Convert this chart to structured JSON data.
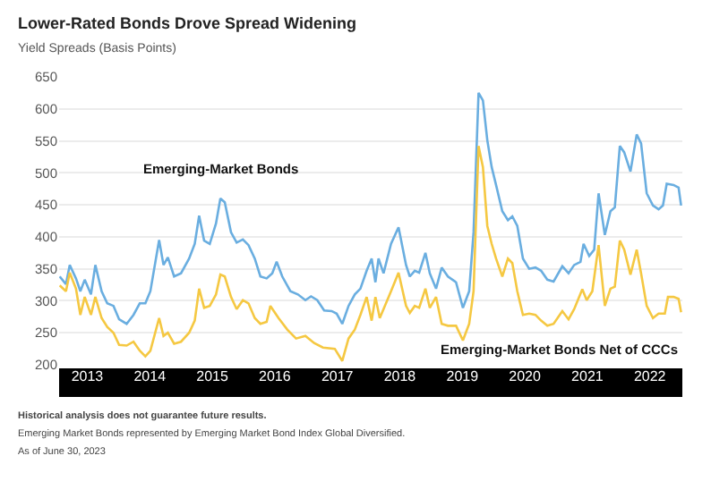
{
  "chart_data": {
    "type": "line",
    "title": "Lower-Rated Bonds Drove Spread Widening",
    "subtitle": "Yield Spreads (Basis Points)",
    "x": [
      2013.06,
      2013.16,
      2013.22,
      2013.32,
      2013.39,
      2013.46,
      2013.56,
      2013.63,
      2013.73,
      2013.82,
      2013.92,
      2014.01,
      2014.13,
      2014.24,
      2014.34,
      2014.43,
      2014.51,
      2014.65,
      2014.72,
      2014.79,
      2014.89,
      2015.0,
      2015.13,
      2015.22,
      2015.29,
      2015.37,
      2015.46,
      2015.56,
      2015.63,
      2015.7,
      2015.8,
      2015.89,
      2015.99,
      2016.08,
      2016.18,
      2016.27,
      2016.37,
      2016.46,
      2016.53,
      2016.62,
      2016.75,
      2016.87,
      2016.99,
      2017.08,
      2017.18,
      2017.29,
      2017.41,
      2017.49,
      2017.58,
      2017.68,
      2017.78,
      2017.87,
      2017.97,
      2018.05,
      2018.11,
      2018.16,
      2018.24,
      2018.36,
      2018.48,
      2018.6,
      2018.66,
      2018.74,
      2018.81,
      2018.91,
      2018.98,
      2019.08,
      2019.17,
      2019.27,
      2019.4,
      2019.51,
      2019.61,
      2019.68,
      2019.76,
      2019.83,
      2019.9,
      2019.97,
      2020.04,
      2020.14,
      2020.23,
      2020.3,
      2020.38,
      2020.47,
      2020.57,
      2020.67,
      2020.76,
      2020.86,
      2020.96,
      2021.1,
      2021.2,
      2021.29,
      2021.39,
      2021.44,
      2021.53,
      2021.61,
      2021.68,
      2021.78,
      2021.87,
      2021.94,
      2022.02,
      2022.09,
      2022.19,
      2022.29,
      2022.36,
      2022.45,
      2022.55,
      2022.64,
      2022.71,
      2022.77,
      2022.88,
      2022.96,
      2023.0
    ],
    "series": [
      {
        "name": "Emerging-Market Bonds",
        "color": "#6aaee0",
        "values": [
          338,
          326,
          356,
          335,
          315,
          333,
          310,
          356,
          315,
          296,
          292,
          271,
          264,
          278,
          296,
          296,
          315,
          395,
          356,
          368,
          338,
          343,
          366,
          389,
          433,
          394,
          389,
          421,
          460,
          454,
          407,
          391,
          396,
          387,
          366,
          338,
          335,
          343,
          361,
          338,
          315,
          310,
          301,
          307,
          301,
          285,
          284,
          280,
          264,
          292,
          310,
          319,
          347,
          366,
          329,
          366,
          343,
          389,
          415,
          356,
          338,
          347,
          344,
          375,
          343,
          319,
          352,
          338,
          329,
          289,
          315,
          407,
          625,
          613,
          551,
          509,
          481,
          440,
          426,
          432,
          417,
          366,
          350,
          352,
          347,
          333,
          330,
          354,
          343,
          356,
          361,
          389,
          370,
          380,
          468,
          403,
          440,
          446,
          542,
          532,
          502,
          560,
          546,
          468,
          449,
          443,
          449,
          483,
          481,
          477,
          449
        ]
      },
      {
        "name": "Emerging-Market Bonds Net of CCCs",
        "color": "#f5c842",
        "x": [
          2013.06,
          2013.16,
          2013.22,
          2013.32,
          2013.39,
          2013.46,
          2013.56,
          2013.63,
          2013.73,
          2013.82,
          2013.92,
          2014.01,
          2014.13,
          2014.24,
          2014.34,
          2014.43,
          2014.51,
          2014.65,
          2014.72,
          2014.79,
          2014.89,
          2015.0,
          2015.13,
          2015.22,
          2015.29,
          2015.37,
          2015.46,
          2015.56,
          2015.63,
          2015.7,
          2015.8,
          2015.89,
          2015.99,
          2016.08,
          2016.18,
          2016.27,
          2016.37,
          2016.43,
          2016.56,
          2016.7,
          2016.84,
          2016.99,
          2017.13,
          2017.27,
          2017.46,
          2017.58,
          2017.68,
          2017.78,
          2017.87,
          2017.97,
          2018.05,
          2018.11,
          2018.18,
          2018.36,
          2018.48,
          2018.6,
          2018.66,
          2018.74,
          2018.81,
          2018.91,
          2018.98,
          2019.08,
          2019.17,
          2019.27,
          2019.4,
          2019.51,
          2019.61,
          2019.68,
          2019.76,
          2019.83,
          2019.9,
          2019.97,
          2020.04,
          2020.14,
          2020.23,
          2020.3,
          2020.38,
          2020.47,
          2020.57,
          2020.67,
          2020.76,
          2020.86,
          2020.96,
          2021.1,
          2021.2,
          2021.29,
          2021.42,
          2021.49,
          2021.58,
          2021.68,
          2021.78,
          2021.87,
          2021.94,
          2022.02,
          2022.09,
          2022.19,
          2022.29,
          2022.36,
          2022.45,
          2022.55,
          2022.64,
          2022.74,
          2022.79,
          2022.88,
          2022.96,
          2023.0
        ],
        "values": [
          324,
          315,
          344,
          319,
          278,
          306,
          278,
          306,
          273,
          259,
          250,
          231,
          230,
          236,
          222,
          213,
          222,
          273,
          245,
          250,
          233,
          236,
          250,
          269,
          319,
          289,
          292,
          310,
          341,
          338,
          306,
          287,
          301,
          296,
          273,
          264,
          267,
          292,
          273,
          255,
          241,
          245,
          234,
          227,
          225,
          206,
          241,
          255,
          278,
          306,
          269,
          306,
          273,
          315,
          344,
          292,
          281,
          292,
          289,
          319,
          289,
          306,
          264,
          261,
          261,
          238,
          264,
          315,
          542,
          509,
          417,
          389,
          366,
          338,
          366,
          359,
          315,
          278,
          280,
          278,
          269,
          261,
          264,
          284,
          271,
          287,
          318,
          301,
          315,
          387,
          292,
          319,
          322,
          394,
          380,
          341,
          380,
          343,
          292,
          273,
          280,
          280,
          306,
          306,
          303,
          282
        ]
      }
    ],
    "xlim": [
      2013.05,
      2023.02
    ],
    "xticks": [
      {
        "value": 2013.5,
        "label": "2013"
      },
      {
        "value": 2014.5,
        "label": "2014"
      },
      {
        "value": 2015.5,
        "label": "2015"
      },
      {
        "value": 2016.5,
        "label": "2016"
      },
      {
        "value": 2017.5,
        "label": "2017"
      },
      {
        "value": 2018.5,
        "label": "2018"
      },
      {
        "value": 2019.5,
        "label": "2019"
      },
      {
        "value": 2020.5,
        "label": "2020"
      },
      {
        "value": 2021.5,
        "label": "2021"
      },
      {
        "value": 2022.5,
        "label": "2022"
      }
    ],
    "ylim": [
      200,
      650
    ],
    "yticks": [
      200,
      250,
      300,
      350,
      400,
      450,
      500,
      550,
      600,
      650
    ],
    "grid": "y",
    "legend": false,
    "marker": "none",
    "line_style": "solid",
    "annotations": [
      "Historical analysis does not guarantee future results.",
      "Emerging Market Bonds represented by Emerging Market Bond Index Global Diversified.",
      "As of June 30, 2023"
    ]
  }
}
